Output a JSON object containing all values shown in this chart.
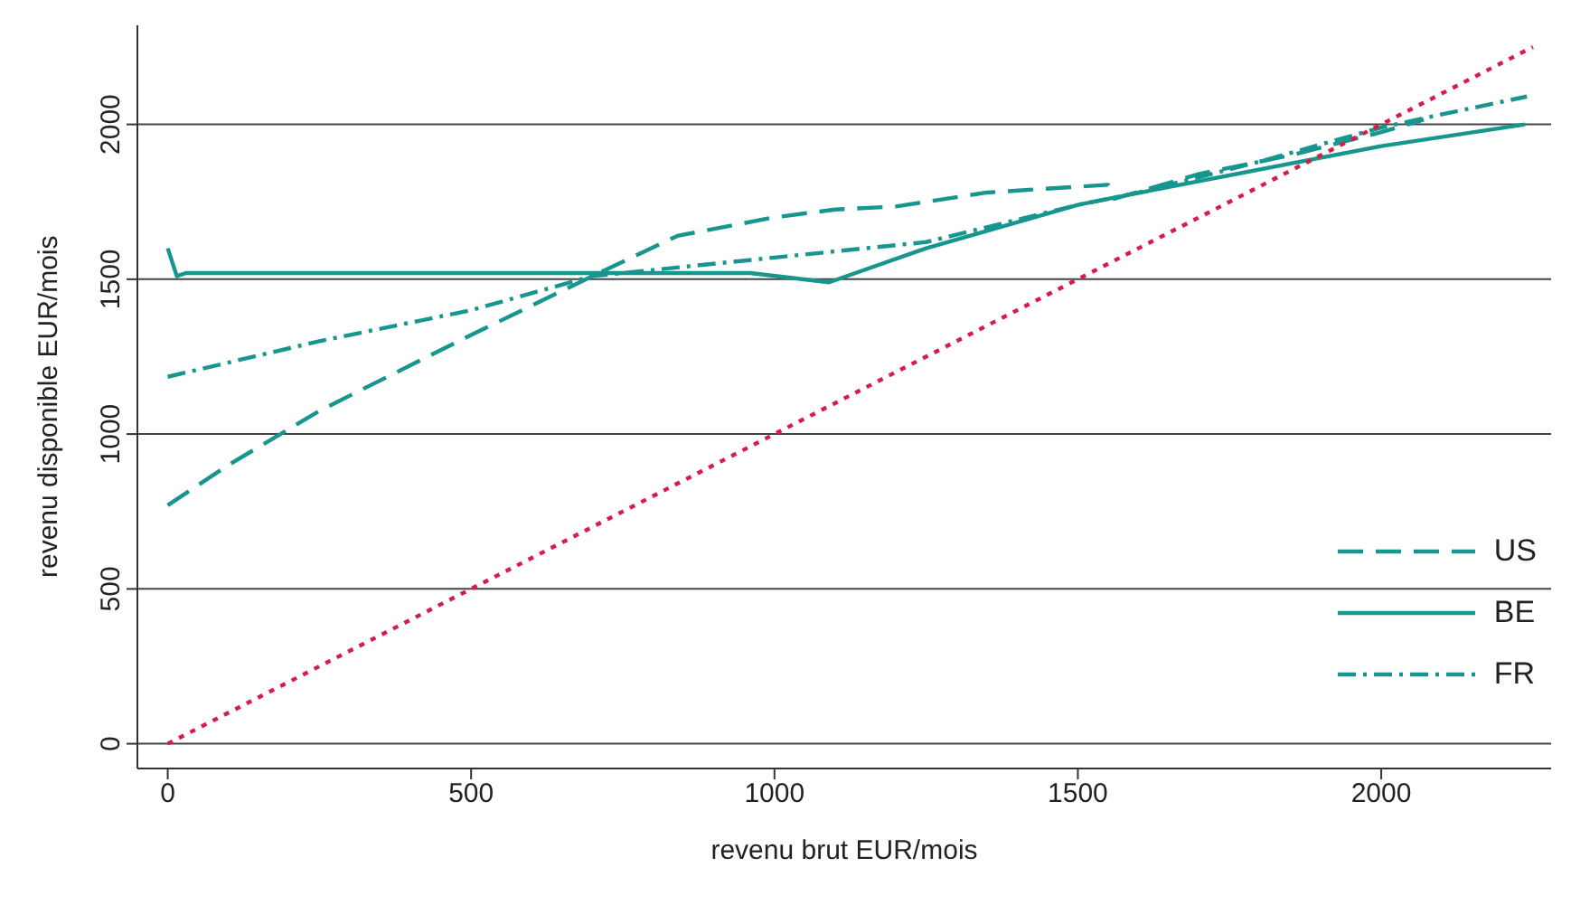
{
  "chart_data": {
    "type": "line",
    "xlabel": "revenu brut EUR/mois",
    "ylabel": "revenu disponible EUR/mois",
    "xlim": [
      -50,
      2280
    ],
    "ylim": [
      -80,
      2320
    ],
    "xticks": [
      0,
      500,
      1000,
      1500,
      2000
    ],
    "yticks": [
      0,
      500,
      1000,
      1500,
      2000
    ],
    "grid": "y",
    "legend": "right",
    "marker": "none",
    "series": [
      {
        "name": "US",
        "color": "#17958f",
        "line_style": "dashed",
        "x": [
          0,
          100,
          250,
          500,
          700,
          840,
          1000,
          1100,
          1200,
          1350,
          1550,
          1560,
          1700,
          1850,
          2000,
          2070
        ],
        "values": [
          770,
          900,
          1075,
          1320,
          1510,
          1640,
          1700,
          1725,
          1735,
          1780,
          1805,
          1760,
          1840,
          1900,
          1975,
          2015
        ]
      },
      {
        "name": "BE",
        "color": "#17958f",
        "line_style": "solid",
        "x": [
          0,
          15,
          30,
          960,
          1090,
          1250,
          1500,
          1550,
          2000,
          2237
        ],
        "values": [
          1600,
          1510,
          1520,
          1520,
          1490,
          1600,
          1740,
          1760,
          1930,
          2000
        ]
      },
      {
        "name": "FR",
        "color": "#17958f",
        "line_style": "dashdot",
        "x": [
          0,
          250,
          500,
          700,
          1000,
          1100,
          1250,
          1500,
          1600,
          1800,
          2000,
          2070,
          2240
        ],
        "values": [
          1185,
          1300,
          1400,
          1510,
          1570,
          1590,
          1620,
          1740,
          1780,
          1880,
          1990,
          2020,
          2090
        ]
      },
      {
        "color": "#d81b4a",
        "line_style": "dotted",
        "x": [
          0,
          2250
        ],
        "values": [
          0,
          2250
        ]
      }
    ]
  }
}
